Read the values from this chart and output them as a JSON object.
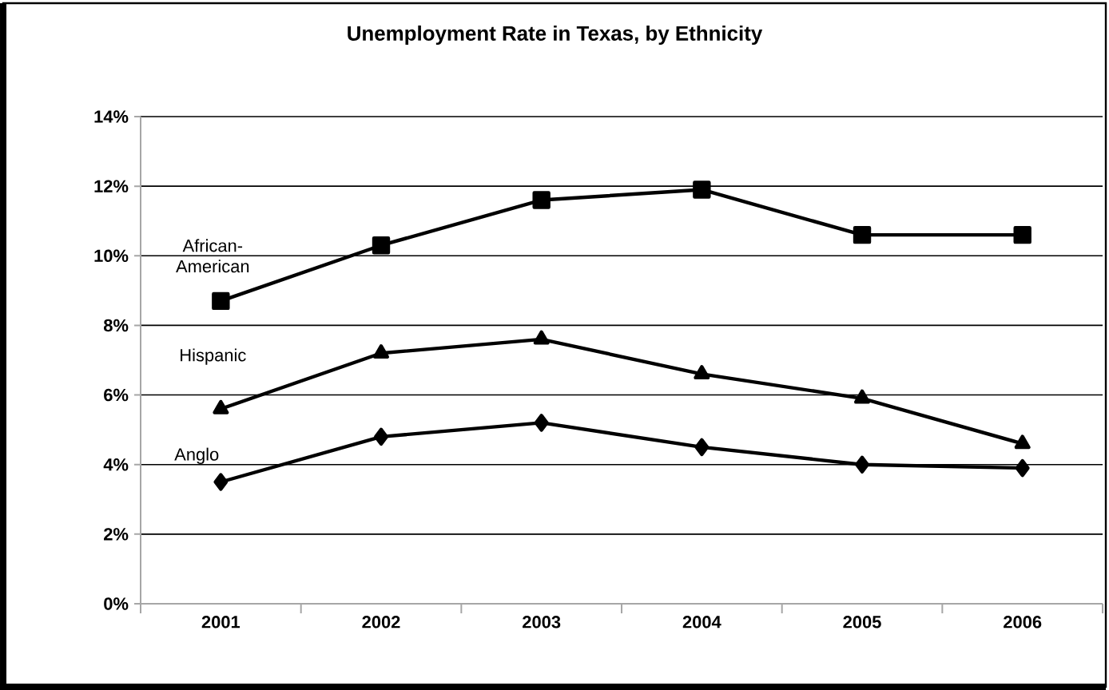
{
  "chart_data": {
    "type": "line",
    "title": "Unemployment Rate in Texas, by Ethnicity",
    "categories": [
      "2001",
      "2002",
      "2003",
      "2004",
      "2005",
      "2006"
    ],
    "series": [
      {
        "name": "African-American",
        "color": "#000000",
        "marker": "square",
        "values": [
          8.7,
          10.3,
          11.6,
          11.9,
          10.6,
          10.6
        ]
      },
      {
        "name": "Hispanic",
        "color": "#000000",
        "marker": "triangle",
        "values": [
          5.6,
          7.2,
          7.6,
          6.6,
          5.9,
          4.6
        ]
      },
      {
        "name": "Anglo",
        "color": "#000000",
        "marker": "diamond",
        "values": [
          3.5,
          4.8,
          5.2,
          4.5,
          4.0,
          3.9
        ]
      }
    ],
    "ylim": [
      0,
      14
    ],
    "yticks": [
      {
        "value": 0,
        "label": "0%"
      },
      {
        "value": 2,
        "label": "2%"
      },
      {
        "value": 4,
        "label": "4%"
      },
      {
        "value": 6,
        "label": "6%"
      },
      {
        "value": 8,
        "label": "8%"
      },
      {
        "value": 10,
        "label": "10%"
      },
      {
        "value": 12,
        "label": "12%"
      },
      {
        "value": 14,
        "label": "14%"
      }
    ],
    "grid": "y",
    "legend": false,
    "line_style": "solid"
  }
}
